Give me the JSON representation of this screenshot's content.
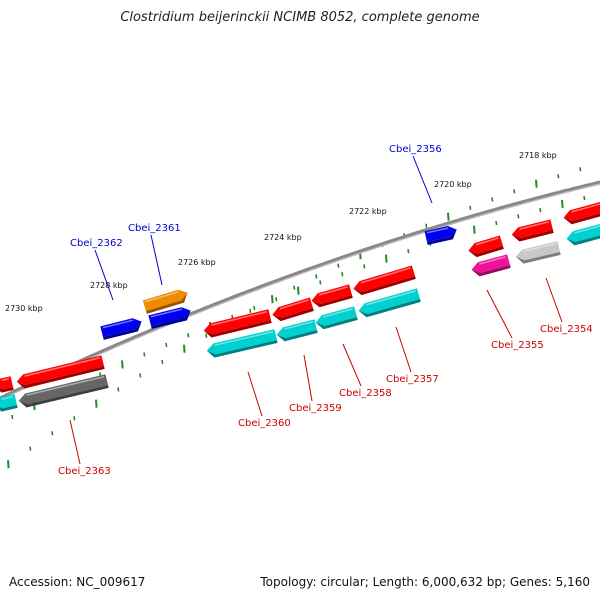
{
  "title": "Clostridium beijerinckii NCIMB 8052, complete genome",
  "footer": {
    "accession": "Accession: NC_009617",
    "summary": "Topology: circular; Length: 6,000,632 bp; Genes: 5,160"
  },
  "colors": {
    "backbone": "#888888",
    "ticks": "#228b22",
    "label_forward": "#0000cc",
    "label_reverse": "#cc0000",
    "red": "#ff0000",
    "blue": "#0000ee",
    "orange": "#f08a00",
    "cyan": "#00d0d0",
    "magenta": "#ee1199",
    "gray": "#c8c8c8",
    "darkgray": "#666666"
  },
  "ruler_labels": [
    "2718 kbp",
    "2720 kbp",
    "2722 kbp",
    "2724 kbp",
    "2726 kbp",
    "2728 kbp",
    "2730 kbp"
  ],
  "gene_labels": {
    "forward": [
      "Cbei_2356",
      "Cbei_2361",
      "Cbei_2362"
    ],
    "reverse": [
      "Cbei_2354",
      "Cbei_2355",
      "Cbei_2357",
      "Cbei_2358",
      "Cbei_2359",
      "Cbei_2360",
      "Cbei_2363"
    ]
  }
}
